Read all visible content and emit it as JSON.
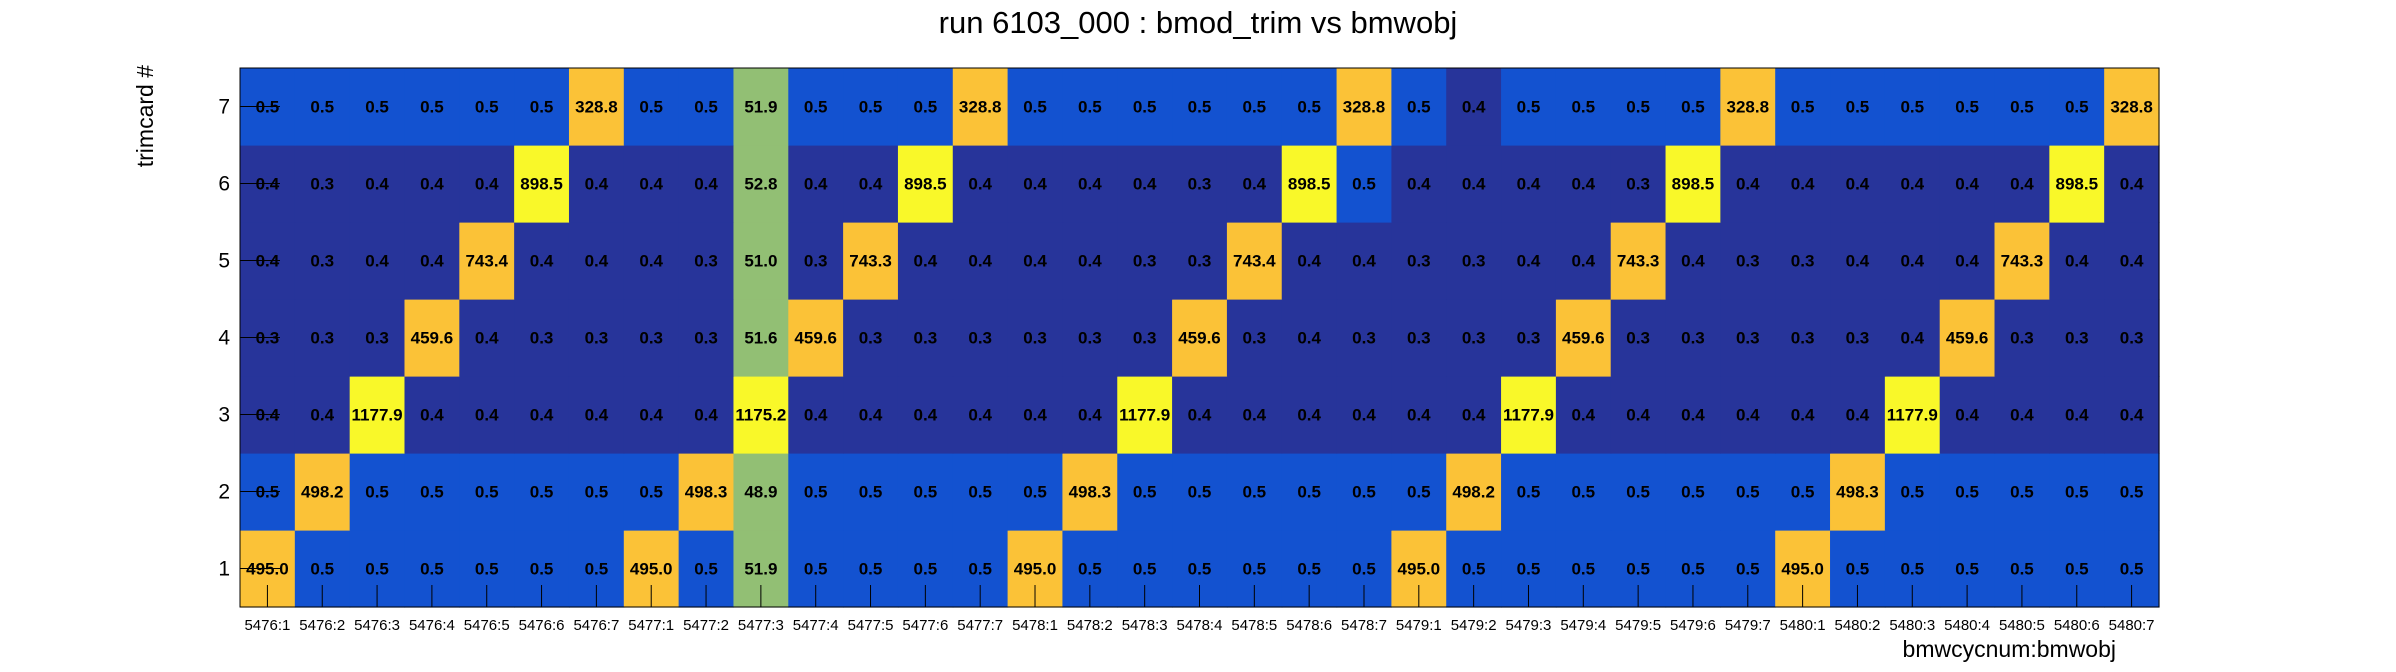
{
  "chart_data": {
    "type": "heatmap",
    "title": "run 6103_000 : bmod_trim vs bmwobj",
    "xlabel": "bmwcycnum:bmwobj",
    "ylabel": "trimcard #",
    "x_categories": [
      "5476:1",
      "5476:2",
      "5476:3",
      "5476:4",
      "5476:5",
      "5476:6",
      "5476:7",
      "5477:1",
      "5477:2",
      "5477:3",
      "5477:4",
      "5477:5",
      "5477:6",
      "5477:7",
      "5478:1",
      "5478:2",
      "5478:3",
      "5478:4",
      "5478:5",
      "5478:6",
      "5478:7",
      "5479:1",
      "5479:2",
      "5479:3",
      "5479:4",
      "5479:5",
      "5479:6",
      "5479:7",
      "5480:1",
      "5480:2",
      "5480:3",
      "5480:4",
      "5480:5",
      "5480:6",
      "5480:7"
    ],
    "y_categories": [
      "1",
      "2",
      "3",
      "4",
      "5",
      "6",
      "7"
    ],
    "values": [
      [
        "495.0",
        "0.5",
        "0.5",
        "0.5",
        "0.5",
        "0.5",
        "0.5",
        "495.0",
        "0.5",
        "51.9",
        "0.5",
        "0.5",
        "0.5",
        "0.5",
        "495.0",
        "0.5",
        "0.5",
        "0.5",
        "0.5",
        "0.5",
        "0.5",
        "495.0",
        "0.5",
        "0.5",
        "0.5",
        "0.5",
        "0.5",
        "0.5",
        "495.0",
        "0.5",
        "0.5",
        "0.5",
        "0.5",
        "0.5",
        "0.5"
      ],
      [
        "0.5",
        "498.2",
        "0.5",
        "0.5",
        "0.5",
        "0.5",
        "0.5",
        "0.5",
        "498.3",
        "48.9",
        "0.5",
        "0.5",
        "0.5",
        "0.5",
        "0.5",
        "498.3",
        "0.5",
        "0.5",
        "0.5",
        "0.5",
        "0.5",
        "0.5",
        "498.2",
        "0.5",
        "0.5",
        "0.5",
        "0.5",
        "0.5",
        "0.5",
        "498.3",
        "0.5",
        "0.5",
        "0.5",
        "0.5",
        "0.5"
      ],
      [
        "0.4",
        "0.4",
        "1177.9",
        "0.4",
        "0.4",
        "0.4",
        "0.4",
        "0.4",
        "0.4",
        "1175.2",
        "0.4",
        "0.4",
        "0.4",
        "0.4",
        "0.4",
        "0.4",
        "1177.9",
        "0.4",
        "0.4",
        "0.4",
        "0.4",
        "0.4",
        "0.4",
        "1177.9",
        "0.4",
        "0.4",
        "0.4",
        "0.4",
        "0.4",
        "0.4",
        "1177.9",
        "0.4",
        "0.4",
        "0.4",
        "0.4"
      ],
      [
        "0.3",
        "0.3",
        "0.3",
        "459.6",
        "0.4",
        "0.3",
        "0.3",
        "0.3",
        "0.3",
        "51.6",
        "459.6",
        "0.3",
        "0.3",
        "0.3",
        "0.3",
        "0.3",
        "0.3",
        "459.6",
        "0.3",
        "0.4",
        "0.3",
        "0.3",
        "0.3",
        "0.3",
        "459.6",
        "0.3",
        "0.3",
        "0.3",
        "0.3",
        "0.3",
        "0.4",
        "459.6",
        "0.3",
        "0.3",
        "0.3"
      ],
      [
        "0.4",
        "0.3",
        "0.4",
        "0.4",
        "743.4",
        "0.4",
        "0.4",
        "0.4",
        "0.3",
        "51.0",
        "0.3",
        "743.3",
        "0.4",
        "0.4",
        "0.4",
        "0.4",
        "0.3",
        "0.3",
        "743.4",
        "0.4",
        "0.4",
        "0.3",
        "0.3",
        "0.4",
        "0.4",
        "743.3",
        "0.4",
        "0.3",
        "0.3",
        "0.4",
        "0.4",
        "0.4",
        "743.3",
        "0.4",
        "0.4"
      ],
      [
        "0.4",
        "0.3",
        "0.4",
        "0.4",
        "0.4",
        "898.5",
        "0.4",
        "0.4",
        "0.4",
        "52.8",
        "0.4",
        "0.4",
        "898.5",
        "0.4",
        "0.4",
        "0.4",
        "0.4",
        "0.3",
        "0.4",
        "898.5",
        "0.5",
        "0.4",
        "0.4",
        "0.4",
        "0.4",
        "0.3",
        "898.5",
        "0.4",
        "0.4",
        "0.4",
        "0.4",
        "0.4",
        "0.4",
        "898.5",
        "0.4"
      ],
      [
        "0.5",
        "0.5",
        "0.5",
        "0.5",
        "0.5",
        "0.5",
        "328.8",
        "0.5",
        "0.5",
        "51.9",
        "0.5",
        "0.5",
        "0.5",
        "328.8",
        "0.5",
        "0.5",
        "0.5",
        "0.5",
        "0.5",
        "0.5",
        "328.8",
        "0.5",
        "0.4",
        "0.5",
        "0.5",
        "0.5",
        "0.5",
        "328.8",
        "0.5",
        "0.5",
        "0.5",
        "0.5",
        "0.5",
        "0.5",
        "328.8"
      ]
    ],
    "colors": {
      "low": "#27349a",
      "low_mid": "#1352d0",
      "mid": "#92bf74",
      "mid_high": "#fbc237",
      "high": "#f9f829"
    }
  }
}
